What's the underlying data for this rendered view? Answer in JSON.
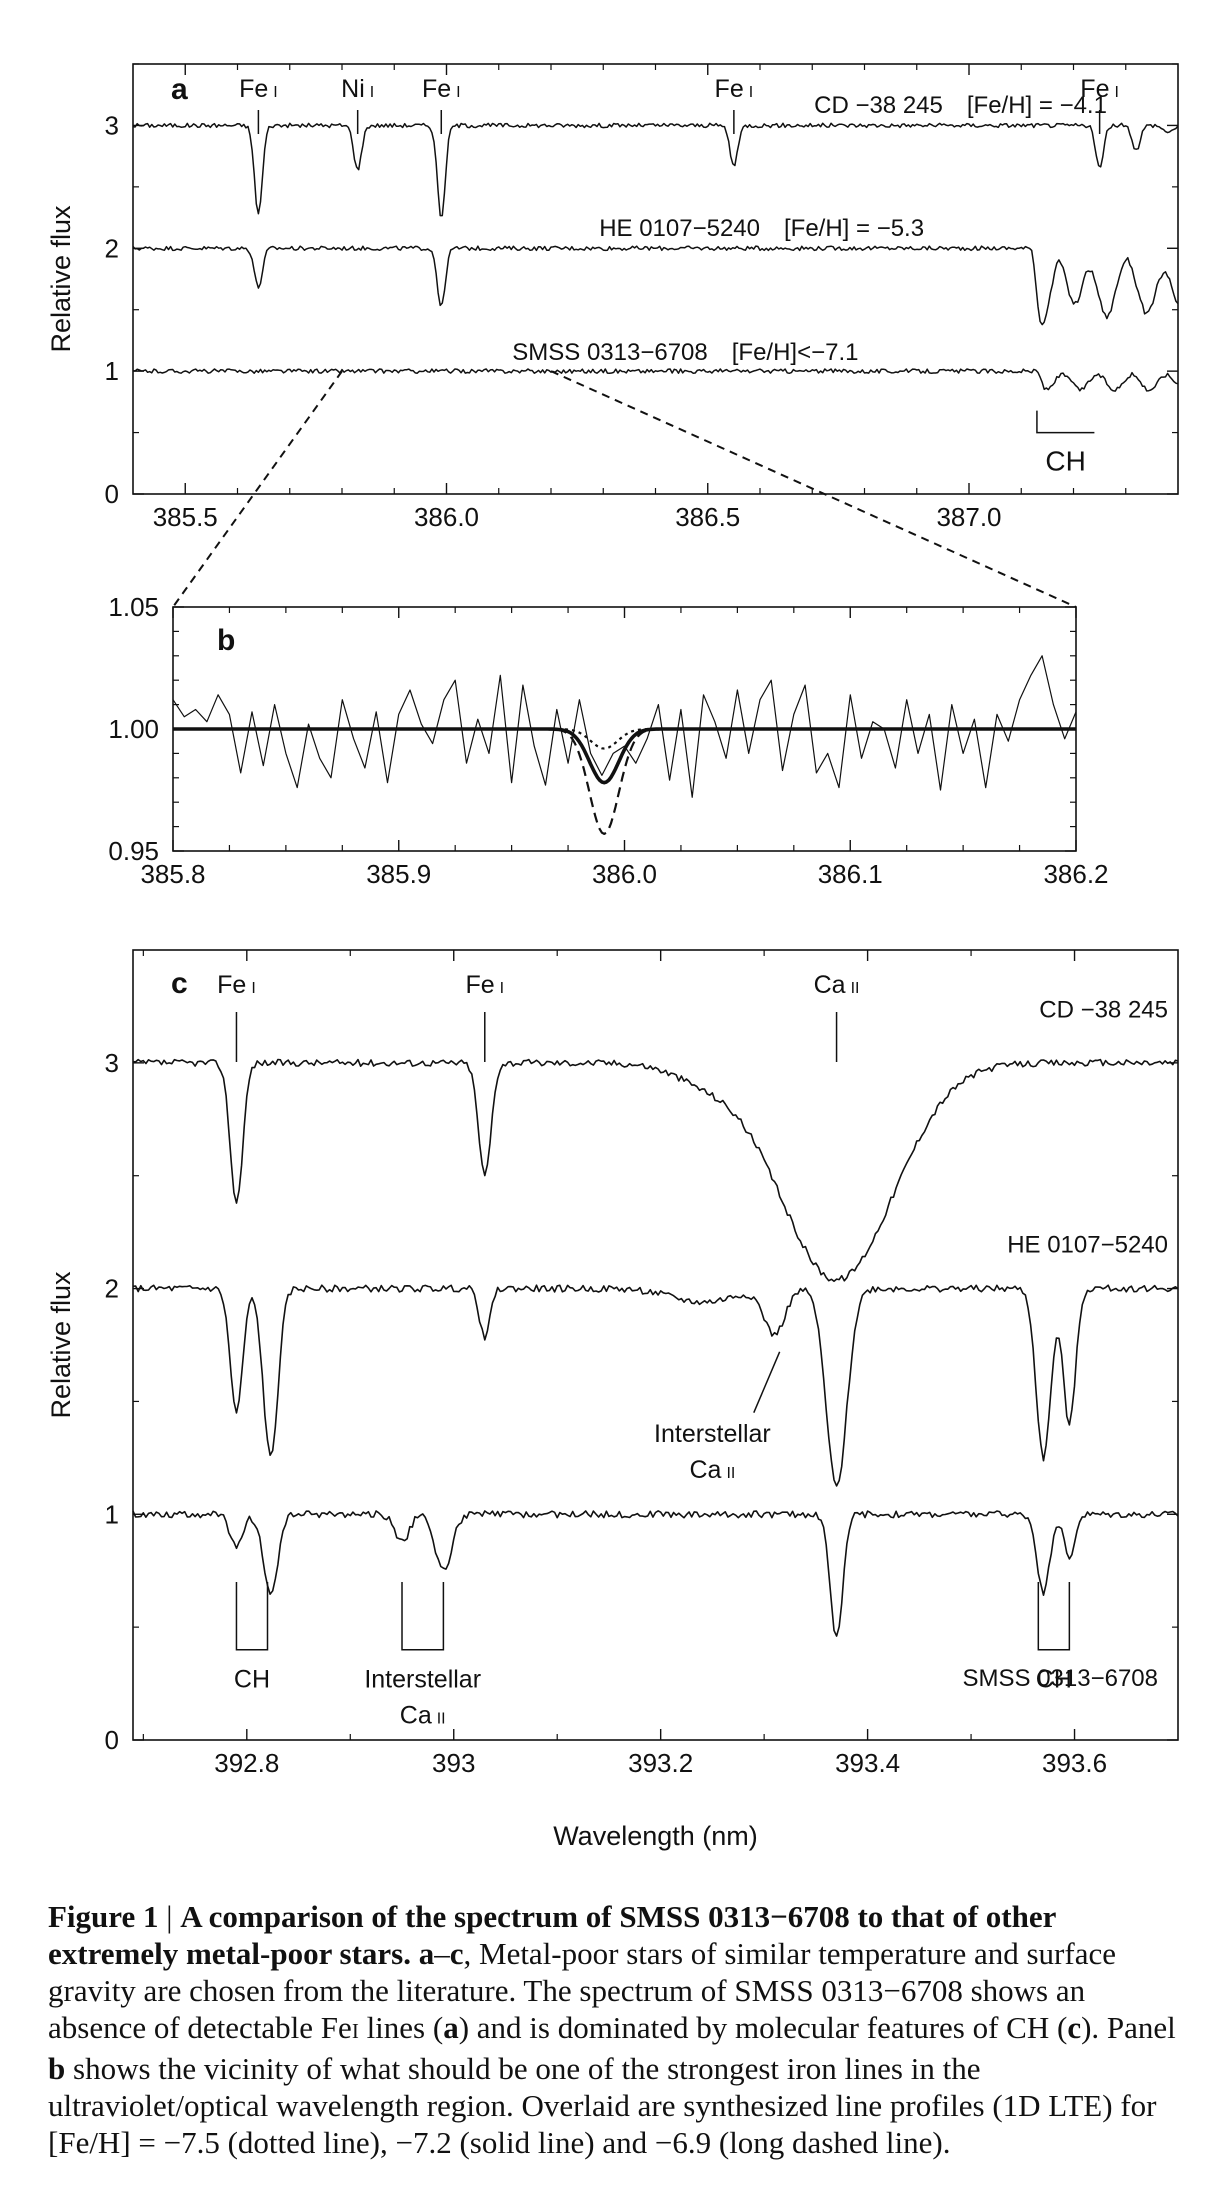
{
  "chart_data": [
    {
      "panel": "a",
      "type": "line",
      "ylabel": "Relative flux",
      "xlim": [
        385.4,
        387.4
      ],
      "ylim": [
        0,
        3.5
      ],
      "xticks": [
        385.5,
        386.0,
        386.5,
        387.0
      ],
      "xtick_labels": [
        "385.5",
        "386.0",
        "386.5",
        "387.0"
      ],
      "yticks": [
        0,
        1,
        2,
        3
      ],
      "series": [
        {
          "name": "CD −38 245",
          "metallicity": "[Fe/H] = −4.1",
          "offset": 3,
          "lines": [
            [
              385.64,
              0.72
            ],
            [
              385.83,
              0.36
            ],
            [
              385.99,
              0.75
            ],
            [
              386.55,
              0.33
            ],
            [
              387.25,
              0.35
            ],
            [
              387.32,
              0.2
            ]
          ],
          "band": [
            387.36,
            0.05
          ]
        },
        {
          "name": "HE 0107−5240",
          "metallicity": "[Fe/H] = −5.3",
          "offset": 2,
          "lines": [
            [
              385.64,
              0.32
            ],
            [
              385.99,
              0.48
            ]
          ],
          "band": [
            387.12,
            0.45
          ]
        },
        {
          "name": "SMSS 0313−6708",
          "metallicity": "[Fe/H]<−7.1",
          "offset": 1,
          "lines": [],
          "band": [
            387.13,
            0.15
          ]
        }
      ],
      "line_ids": [
        {
          "label": "Fe",
          "ion": "I",
          "x": 385.64
        },
        {
          "label": "Ni",
          "ion": "I",
          "x": 385.83
        },
        {
          "label": "Fe",
          "ion": "I",
          "x": 385.99
        },
        {
          "label": "Fe",
          "ion": "I",
          "x": 386.55
        },
        {
          "label": "Fe",
          "ion": "I",
          "x": 387.25
        }
      ],
      "annotation": {
        "text": "CH",
        "x_start": 387.13,
        "x_end": 387.24
      }
    },
    {
      "panel": "b",
      "type": "line",
      "xlim": [
        385.8,
        386.2
      ],
      "ylim": [
        0.95,
        1.05
      ],
      "xticks": [
        385.8,
        385.9,
        386.0,
        386.1,
        386.2
      ],
      "xtick_labels": [
        "385.8",
        "385.9",
        "386.0",
        "386.1",
        "386.2"
      ],
      "yticks": [
        0.95,
        1.0,
        1.05
      ],
      "ytick_labels": [
        "0.95",
        "1.00",
        "1.05"
      ],
      "observed": {
        "x": [
          385.8,
          385.805,
          385.81,
          385.815,
          385.82,
          385.825,
          385.83,
          385.835,
          385.84,
          385.845,
          385.85,
          385.855,
          385.86,
          385.865,
          385.87,
          385.875,
          385.88,
          385.885,
          385.89,
          385.895,
          385.9,
          385.905,
          385.91,
          385.915,
          385.92,
          385.925,
          385.93,
          385.935,
          385.94,
          385.945,
          385.95,
          385.955,
          385.96,
          385.965,
          385.97,
          385.975,
          385.98,
          385.985,
          385.99,
          385.995,
          386.0,
          386.005,
          386.01,
          386.015,
          386.02,
          386.025,
          386.03,
          386.035,
          386.04,
          386.045,
          386.05,
          386.055,
          386.06,
          386.065,
          386.07,
          386.075,
          386.08,
          386.085,
          386.09,
          386.095,
          386.1,
          386.105,
          386.11,
          386.115,
          386.12,
          386.125,
          386.13,
          386.135,
          386.14,
          386.145,
          386.15,
          386.155,
          386.16,
          386.165,
          386.17,
          386.175,
          386.18,
          386.185,
          386.19,
          386.195,
          386.2
        ],
        "y": [
          1.012,
          1.005,
          1.008,
          1.003,
          1.014,
          1.006,
          0.982,
          1.007,
          0.985,
          1.01,
          0.99,
          0.976,
          1.002,
          0.988,
          0.98,
          1.012,
          0.996,
          0.984,
          1.007,
          0.978,
          1.006,
          1.016,
          1.002,
          0.994,
          1.012,
          1.02,
          0.986,
          1.004,
          0.99,
          1.022,
          0.978,
          1.018,
          0.993,
          0.977,
          1.008,
          0.986,
          1.012,
          0.99,
          0.981,
          0.99,
          0.993,
          0.986,
          0.996,
          1.01,
          0.979,
          1.008,
          0.972,
          1.014,
          1.003,
          0.988,
          1.016,
          0.99,
          1.012,
          1.02,
          0.983,
          1.006,
          1.018,
          0.982,
          0.99,
          0.976,
          1.014,
          0.988,
          1.003,
          1.0,
          0.984,
          1.012,
          0.99,
          1.006,
          0.975,
          1.01,
          0.99,
          1.004,
          0.976,
          1.006,
          0.995,
          1.012,
          1.022,
          1.03,
          1.01,
          0.996,
          1.007
        ]
      },
      "models": [
        {
          "line_style": "dotted",
          "depth": 0.008,
          "sigma": 0.006
        },
        {
          "line_style": "solid",
          "depth": 0.022,
          "sigma": 0.0065
        },
        {
          "line_style": "long dashed",
          "depth": 0.043,
          "sigma": 0.0065
        }
      ]
    },
    {
      "panel": "c",
      "type": "line",
      "xlabel": "Wavelength (nm)",
      "ylabel": "Relative flux",
      "xlim": [
        392.69,
        393.7
      ],
      "ylim": [
        0,
        3.5
      ],
      "xticks": [
        392.8,
        393.0,
        393.2,
        393.4,
        393.6
      ],
      "xtick_labels": [
        "392.8",
        "393",
        "393.2",
        "393.4",
        "393.6"
      ],
      "yticks": [
        0,
        1,
        2,
        3
      ],
      "series": [
        {
          "name": "CD −38 245",
          "offset": 3
        },
        {
          "name": "HE 0107−5240",
          "offset": 2
        },
        {
          "name": "SMSS 0313−6708",
          "offset": 1
        }
      ],
      "line_ids": [
        {
          "label": "Fe",
          "ion": "I",
          "x": 392.79
        },
        {
          "label": "Fe",
          "ion": "I",
          "x": 393.03
        },
        {
          "label": "Ca",
          "ion": "II",
          "x": 393.37
        }
      ],
      "annotations": [
        {
          "text": "Interstellar",
          "sub": "Ca",
          "ion": "II"
        },
        {
          "text": "CH",
          "x_start": 392.79,
          "x_end": 392.82
        },
        {
          "text": "Interstellar",
          "sub": "Ca",
          "ion": "II",
          "x_start": 392.95,
          "x_end": 392.99
        },
        {
          "text": "CH",
          "x_start": 393.565,
          "x_end": 393.595
        }
      ]
    }
  ],
  "caption": {
    "figure_label": "Figure 1",
    "separator": "|",
    "title": "A comparison of the spectrum of SMSS 0313−6708 to that of other extremely metal-poor stars.",
    "body_1": "a",
    "body_2": "–",
    "body_3": "c",
    "body_4": ", Metal-poor stars of similar temperature and surface gravity are chosen from the literature. The spectrum of SMSS 0313−6708 shows an absence of detectable Fe",
    "body_5": "I",
    "body_6": " lines (",
    "body_7": "a",
    "body_8": ") and is dominated by molecular features of CH (",
    "body_9": "c",
    "body_10": "). Panel ",
    "body_11": "b",
    "body_12": " shows the vicinity of what should be one of the strongest iron lines in the ultraviolet/optical wavelength region. Overlaid are synthesized line profiles (1D LTE) for [Fe/H] = −7.5 (dotted line), −7.2 (solid line) and −6.9 (long dashed line)."
  }
}
